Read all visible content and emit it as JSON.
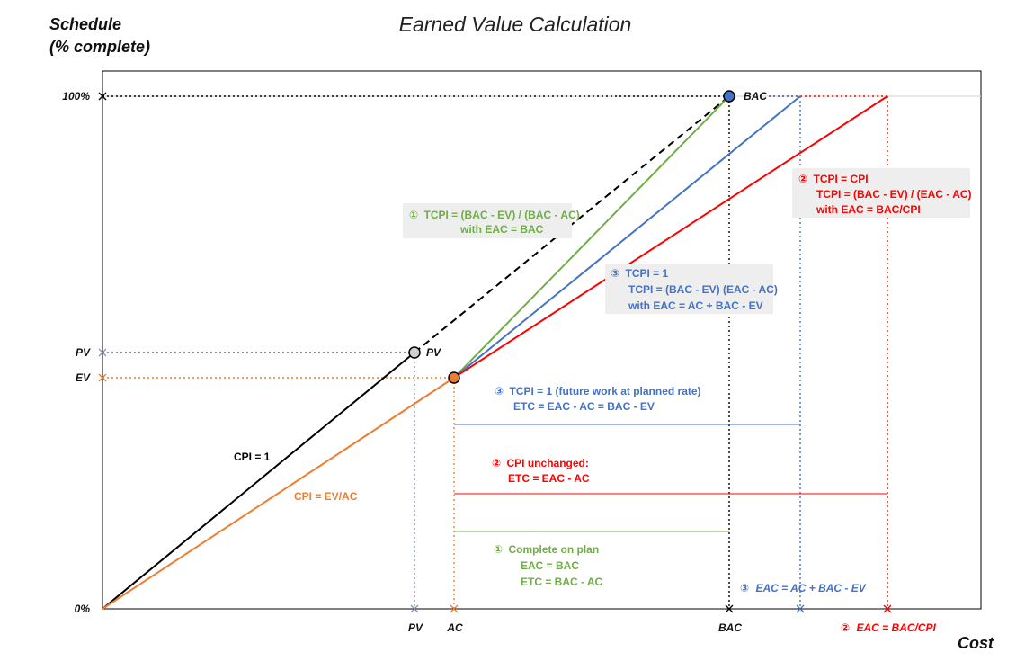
{
  "title": "Earned Value Calculation",
  "y_axis": {
    "line1": "Schedule",
    "line2": "(% complete)"
  },
  "x_axis": {
    "label": "Cost"
  },
  "y_ticks": {
    "top": "100%",
    "pv": "PV",
    "ev": "EV",
    "zero": "0%"
  },
  "x_ticks": {
    "pv": "PV",
    "ac": "AC",
    "bac": "BAC"
  },
  "points": {
    "pv": "PV",
    "bac": "BAC"
  },
  "lines": {
    "cpi_1": "CPI = 1",
    "cpi_ev_ac": "CPI = EV/AC"
  },
  "notes": {
    "green_tcpi": {
      "marker": "①",
      "line1": "TCPI = (BAC - EV) / (BAC - AC)",
      "line2": "with EAC = BAC"
    },
    "red_tcpi": {
      "marker": "②",
      "line1": "TCPI = CPI",
      "line2": "TCPI = (BAC - EV) / (EAC - AC)",
      "line3": "with EAC = BAC/CPI"
    },
    "blue_tcpi": {
      "marker": "③",
      "line1": "TCPI = 1",
      "line2": "TCPI = (BAC - EV) (EAC - AC)",
      "line3": "with EAC = AC + BAC - EV"
    },
    "blue_etc": {
      "marker": "③",
      "line1": "TCPI = 1 (future work at planned rate)",
      "line2": "ETC = EAC - AC = BAC - EV"
    },
    "red_etc": {
      "marker": "②",
      "line1": "CPI unchanged:",
      "line2": "ETC = EAC - AC"
    },
    "green_etc": {
      "marker": "①",
      "line1": "Complete on plan",
      "line2": "EAC = BAC",
      "line3": "ETC = BAC - AC"
    },
    "blue_eac": {
      "marker": "③",
      "text": "EAC = AC + BAC - EV"
    },
    "red_eac": {
      "marker": "②",
      "text": "EAC = BAC/CPI"
    }
  },
  "colors": {
    "black": "#000000",
    "orange": "#ed7d31",
    "green": "#70ad47",
    "blue": "#4472c4",
    "red": "#ff0000",
    "note_bg": "#eeeeee",
    "gray_marker": "#8497b0"
  }
}
